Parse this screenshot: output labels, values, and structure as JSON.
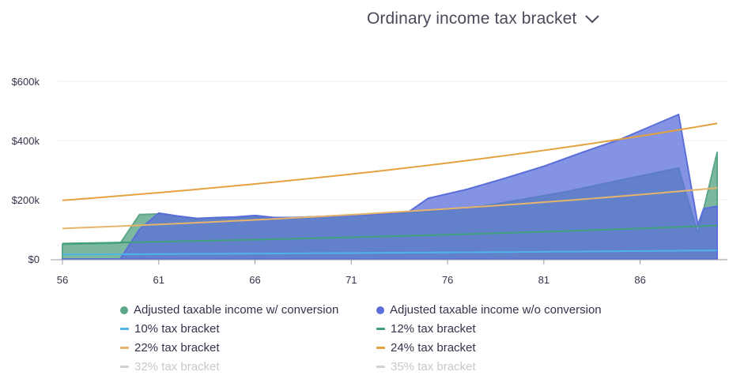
{
  "header": {
    "title": "Ordinary income tax bracket",
    "chevron_icon": "chevron-down-icon"
  },
  "chart_data": {
    "type": "area",
    "title": "",
    "xlabel": "",
    "ylabel": "",
    "xlim": [
      56,
      90
    ],
    "ylim": [
      0,
      600000
    ],
    "x_ticks": [
      56,
      61,
      66,
      71,
      76,
      81,
      86
    ],
    "x_tick_labels": [
      "56",
      "61",
      "66",
      "71",
      "76",
      "81",
      "86"
    ],
    "y_ticks": [
      0,
      200000,
      400000,
      600000
    ],
    "y_tick_labels": [
      "$0",
      "$200k",
      "$400k",
      "$600k"
    ],
    "grid": true,
    "legend_position": "bottom",
    "areas": [
      {
        "name": "Adjusted taxable income w/ conversion",
        "color": "#5aa687",
        "points": [
          [
            56,
            50000
          ],
          [
            59,
            53000
          ],
          [
            60,
            150000
          ],
          [
            61,
            152000
          ],
          [
            62,
            143000
          ],
          [
            63,
            135000
          ],
          [
            64,
            138000
          ],
          [
            65,
            140000
          ],
          [
            66,
            143000
          ],
          [
            67,
            138000
          ],
          [
            68,
            140000
          ],
          [
            70,
            145000
          ],
          [
            72,
            150000
          ],
          [
            74,
            157000
          ],
          [
            75,
            160000
          ],
          [
            78,
            180000
          ],
          [
            82,
            225000
          ],
          [
            86,
            280000
          ],
          [
            88,
            307000
          ],
          [
            89,
            85000
          ],
          [
            90,
            360000
          ]
        ]
      },
      {
        "name": "Adjusted taxable income w/o conversion",
        "color": "#5b6fd9",
        "points": [
          [
            56,
            0
          ],
          [
            59,
            0
          ],
          [
            60,
            100000
          ],
          [
            61,
            155000
          ],
          [
            62,
            145000
          ],
          [
            63,
            137000
          ],
          [
            64,
            140000
          ],
          [
            65,
            142000
          ],
          [
            66,
            147000
          ],
          [
            67,
            140000
          ],
          [
            68,
            140000
          ],
          [
            70,
            145000
          ],
          [
            72,
            150000
          ],
          [
            74,
            160000
          ],
          [
            75,
            205000
          ],
          [
            77,
            235000
          ],
          [
            79,
            273000
          ],
          [
            81,
            313000
          ],
          [
            83,
            360000
          ],
          [
            85,
            405000
          ],
          [
            88,
            488000
          ],
          [
            89,
            115000
          ],
          [
            89.3,
            170000
          ],
          [
            90,
            178000
          ]
        ]
      }
    ],
    "lines": [
      {
        "name": "10% tax bracket",
        "color": "#4fb3e8",
        "start": 15000,
        "end": 29000,
        "visible": true
      },
      {
        "name": "12% tax bracket",
        "color": "#3f9f7a",
        "start": 52000,
        "end": 113000,
        "visible": true
      },
      {
        "name": "22% tax bracket",
        "color": "#e5b36b",
        "start": 103000,
        "end": 240000,
        "visible": true
      },
      {
        "name": "24% tax bracket",
        "color": "#e3a240",
        "start": 198000,
        "end": 458000,
        "visible": true
      },
      {
        "name": "32% tax bracket",
        "color": "#d0d0d6",
        "start": 0,
        "end": 0,
        "visible": false
      },
      {
        "name": "35% tax bracket",
        "color": "#d0d0d6",
        "start": 0,
        "end": 0,
        "visible": false
      }
    ]
  }
}
